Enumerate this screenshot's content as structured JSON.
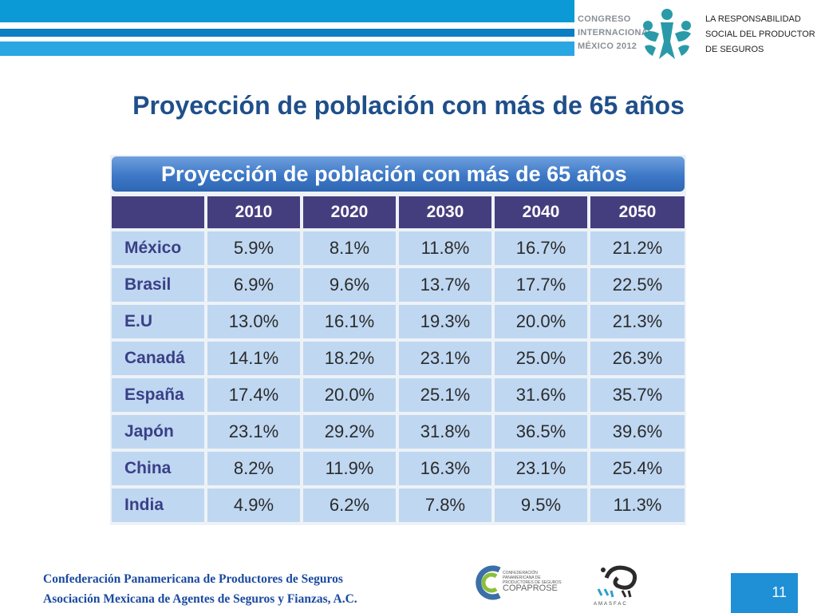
{
  "header": {
    "congreso": [
      "CONGRESO",
      "INTERNACIONAL",
      "MÉXICO 2012"
    ],
    "responsabilidad": [
      "LA RESPONSABILIDAD",
      "SOCIAL DEL PRODUCTOR",
      "DE SEGUROS"
    ]
  },
  "slide": {
    "title": "Proyección de población con más de 65 años"
  },
  "table": {
    "title": "Proyección de población con más de 65 años",
    "columns": [
      "2010",
      "2020",
      "2030",
      "2040",
      "2050"
    ],
    "rows": [
      {
        "country": "México",
        "values": [
          "5.9%",
          "8.1%",
          "11.8%",
          "16.7%",
          "21.2%"
        ]
      },
      {
        "country": "Brasil",
        "values": [
          "6.9%",
          "9.6%",
          "13.7%",
          "17.7%",
          "22.5%"
        ]
      },
      {
        "country": "E.U",
        "values": [
          "13.0%",
          "16.1%",
          "19.3%",
          "20.0%",
          "21.3%"
        ]
      },
      {
        "country": "Canadá",
        "values": [
          "14.1%",
          "18.2%",
          "23.1%",
          "25.0%",
          "26.3%"
        ]
      },
      {
        "country": "España",
        "values": [
          "17.4%",
          "20.0%",
          "25.1%",
          "31.6%",
          "35.7%"
        ]
      },
      {
        "country": "Japón",
        "values": [
          "23.1%",
          "29.2%",
          "31.8%",
          "36.5%",
          "39.6%"
        ]
      },
      {
        "country": "China",
        "values": [
          "8.2%",
          "11.9%",
          "16.3%",
          "23.1%",
          "25.4%"
        ]
      },
      {
        "country": "India",
        "values": [
          "4.9%",
          "6.2%",
          "7.8%",
          "9.5%",
          "11.3%"
        ]
      }
    ]
  },
  "footer": {
    "line1": "Confederación Panamericana de Productores de Seguros",
    "line2": "Asociación Mexicana de Agentes de Seguros y Fianzas, A.C.",
    "copaprose_small": "CONFEDERACIÓN PANAMERICANA DE PRODUCTORES DE SEGUROS",
    "copaprose_name": "COPAPROSE",
    "amasfac": "AMASFAC",
    "page_number": "11"
  },
  "colors": {
    "title_blue": "#1f4f8a",
    "header_cell": "#453e7e",
    "data_cell": "#bfd7f1",
    "band_blue": "#0c9ad6",
    "logo_teal": "#2a9aa8"
  },
  "icons": {
    "congress_logo": "people-circle-logo",
    "copaprose_logo": "copaprose-logo",
    "amasfac_logo": "amasfac-logo"
  }
}
